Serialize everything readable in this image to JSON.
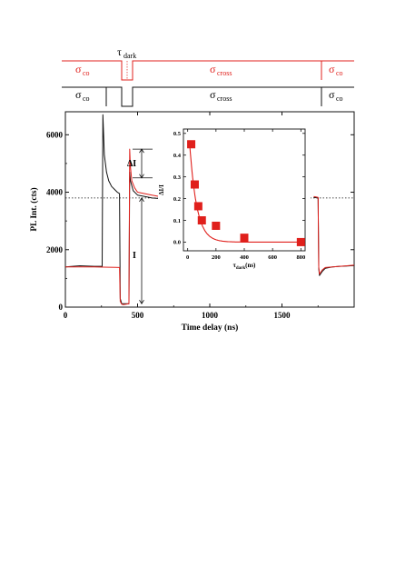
{
  "colors": {
    "red": "#e0201c",
    "black": "#111111"
  },
  "timing_diagram": {
    "tau_label": {
      "main": "τ",
      "sub": "dark"
    },
    "red_row": [
      {
        "main": "σ",
        "sub": "co"
      },
      {
        "main": "σ",
        "sub": "cross"
      },
      {
        "main": "σ",
        "sub": "co"
      }
    ],
    "black_row": [
      {
        "main": "σ",
        "sub": "co"
      },
      {
        "main": "σ",
        "sub": "cross"
      },
      {
        "main": "σ",
        "sub": "co"
      }
    ]
  },
  "chart_data": [
    {
      "type": "line",
      "xlabel": "Time delay (ns)",
      "ylabel": "PL Int. (cts)",
      "xlim": [
        0,
        2000
      ],
      "ylim": [
        0,
        6800
      ],
      "xticks": [
        0,
        500,
        1000,
        1500
      ],
      "yticks": [
        0,
        2000,
        4000,
        6000
      ],
      "reference_level": 3800,
      "annotations": {
        "delta_I": "ΔI",
        "I": "I"
      },
      "series": [
        {
          "color": "black",
          "x": [
            0,
            100,
            200,
            255,
            260,
            270,
            285,
            300,
            320,
            340,
            360,
            375,
            380,
            390,
            400,
            420,
            440,
            445,
            450,
            470,
            500,
            550,
            600,
            650,
            680,
            1720,
            1750,
            1755,
            1760,
            1780,
            1800,
            1850,
            1900,
            1950,
            2000
          ],
          "y": [
            1400,
            1440,
            1420,
            1420,
            6700,
            5300,
            4700,
            4400,
            4200,
            4100,
            4000,
            3950,
            300,
            120,
            120,
            120,
            120,
            4700,
            4400,
            4050,
            3900,
            3850,
            3800,
            3780,
            3770,
            3820,
            3800,
            1350,
            1100,
            1250,
            1350,
            1400,
            1420,
            1430,
            1450
          ]
        },
        {
          "color": "red",
          "x": [
            0,
            100,
            200,
            300,
            375,
            380,
            390,
            400,
            420,
            440,
            445,
            450,
            460,
            480,
            500,
            550,
            600,
            650,
            680,
            1720,
            1750,
            1755,
            1760,
            1780,
            1800,
            1850,
            1900,
            1950,
            2000
          ],
          "y": [
            1400,
            1400,
            1400,
            1390,
            1380,
            200,
            100,
            90,
            100,
            120,
            5500,
            4900,
            4400,
            4150,
            4000,
            3950,
            3900,
            3850,
            3820,
            3850,
            3820,
            1400,
            1150,
            1300,
            1380,
            1400,
            1420,
            1440,
            1460
          ]
        }
      ]
    },
    {
      "type": "scatter",
      "xlabel": "τ_dark(ns)",
      "ylabel": "ΔI/I",
      "xlim": [
        -30,
        830
      ],
      "ylim": [
        -0.04,
        0.52
      ],
      "xticks": [
        0,
        200,
        400,
        600,
        800
      ],
      "yticks": [
        0.0,
        0.1,
        0.2,
        0.3,
        0.4,
        0.5
      ],
      "points": {
        "x": [
          25,
          50,
          75,
          100,
          200,
          400,
          800
        ],
        "y": [
          0.45,
          0.265,
          0.165,
          0.1,
          0.075,
          0.02,
          0.0
        ]
      },
      "fit": {
        "amplitude": 0.6,
        "tau": 50
      }
    }
  ]
}
